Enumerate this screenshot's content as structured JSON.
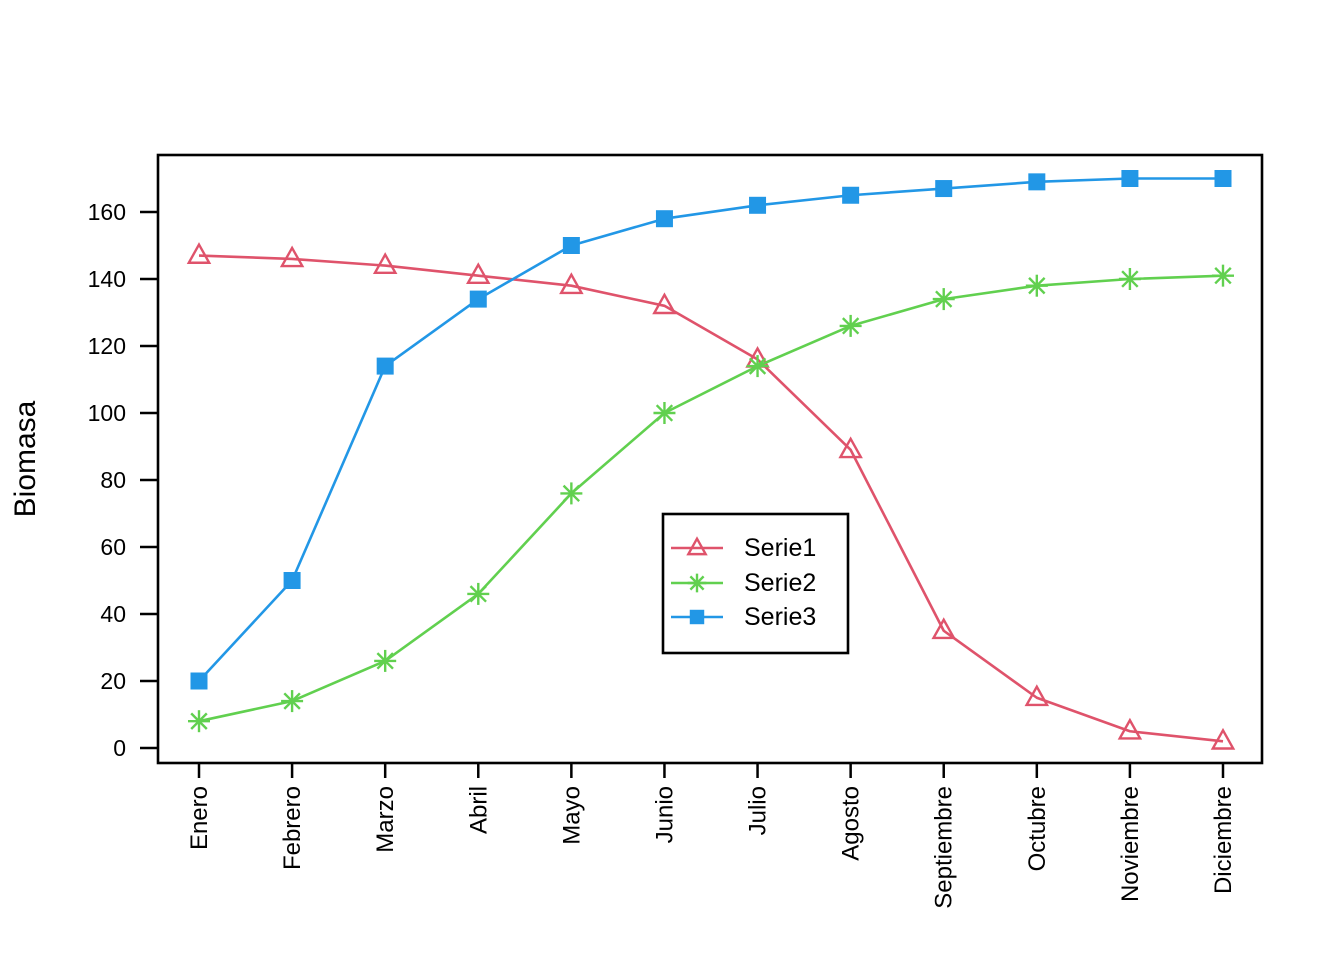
{
  "chart_data": {
    "type": "line",
    "title": "",
    "xlabel": "",
    "ylabel": "Biomasa",
    "categories": [
      "Enero",
      "Febrero",
      "Marzo",
      "Abril",
      "Mayo",
      "Junio",
      "Julio",
      "Agosto",
      "Septiembre",
      "Octubre",
      "Noviembre",
      "Diciembre"
    ],
    "series": [
      {
        "name": "Serie1",
        "color": "#DF536B",
        "marker": "triangle-open",
        "values": [
          147,
          146,
          144,
          141,
          138,
          132,
          116,
          89,
          35,
          15,
          5,
          2
        ]
      },
      {
        "name": "Serie2",
        "color": "#61D04F",
        "marker": "asterisk",
        "values": [
          8,
          14,
          26,
          46,
          76,
          100,
          114,
          126,
          134,
          138,
          140,
          141
        ]
      },
      {
        "name": "Serie3",
        "color": "#2297E6",
        "marker": "square-filled",
        "values": [
          20,
          50,
          114,
          134,
          150,
          158,
          162,
          165,
          167,
          169,
          170,
          170
        ]
      }
    ],
    "y_ticks": [
      0,
      20,
      40,
      60,
      80,
      100,
      120,
      140,
      160
    ],
    "ylim": [
      0,
      170
    ],
    "grid": false,
    "legend": {
      "position": "center-right",
      "entries": [
        "Serie1",
        "Serie2",
        "Serie3"
      ]
    },
    "axis_color": "#000000",
    "background": "#ffffff"
  }
}
